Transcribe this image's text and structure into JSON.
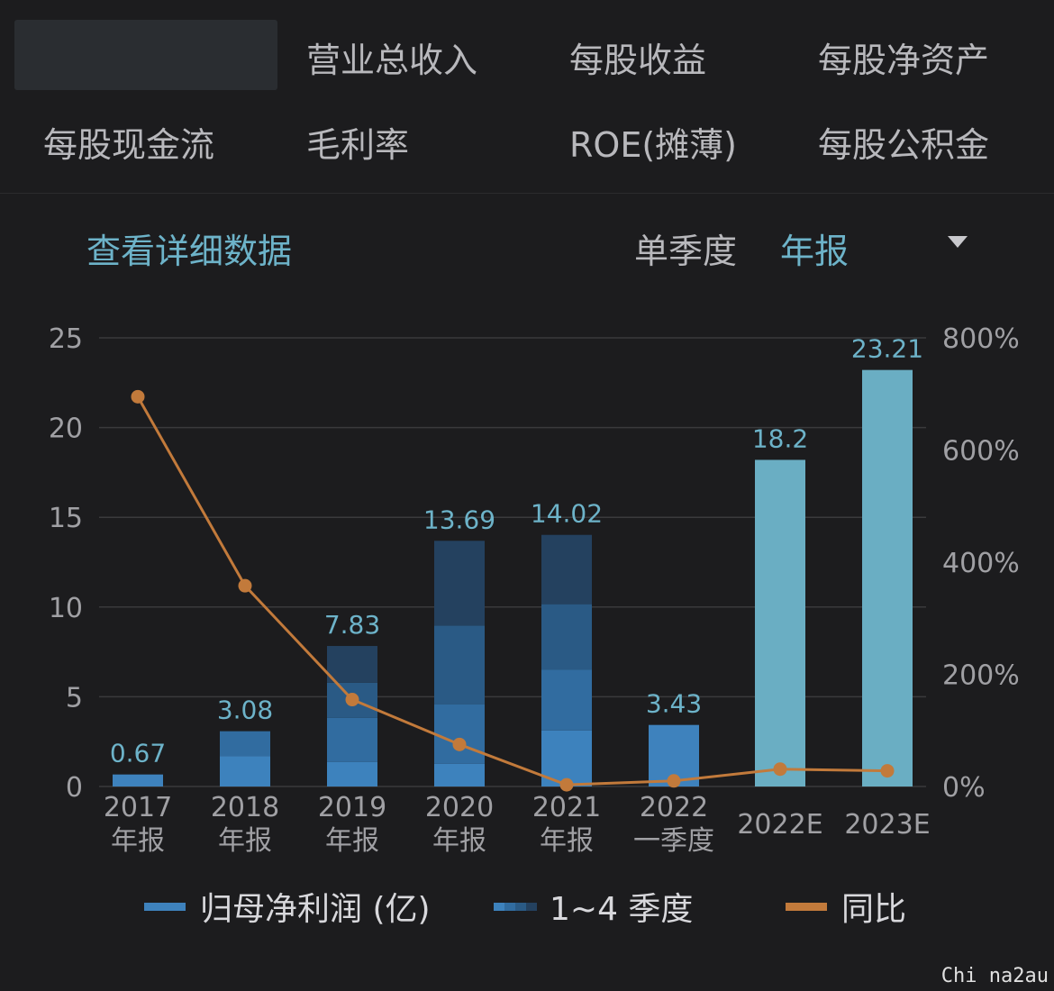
{
  "tabs": {
    "row1": [
      "营业总收入",
      "每股收益",
      "每股净资产"
    ],
    "row2": [
      "每股现金流",
      "毛利率",
      "ROE(摊薄)",
      "每股公积金"
    ]
  },
  "toolbar": {
    "detail_link": "查看详细数据",
    "period_label": "单季度",
    "period_value": "年报"
  },
  "legend": {
    "net_profit": "归母净利润 (亿)",
    "quarters": "1~4 季度",
    "yoy": "同比"
  },
  "watermark": "Chi na2au",
  "colors": {
    "background": "#1c1c1e",
    "bar_base": "#3e82bd",
    "quarter_shades": [
      "#3d82bd",
      "#316ca0",
      "#2a5a85",
      "#24415f"
    ],
    "estimate": "#6aaec3",
    "yoy_line": "#c27a3b",
    "label": "#6db3c9",
    "axis_text": "#a0a0a4",
    "grid": "#3a3a3c"
  },
  "chart_data": {
    "type": "bar",
    "categories": [
      [
        "2017",
        "年报"
      ],
      [
        "2018",
        "年报"
      ],
      [
        "2019",
        "年报"
      ],
      [
        "2020",
        "年报"
      ],
      [
        "2021",
        "年报"
      ],
      [
        "2022",
        "一季度"
      ],
      [
        "2022E"
      ],
      [
        "2023E"
      ]
    ],
    "values": [
      0.67,
      3.08,
      7.83,
      13.69,
      14.02,
      3.43,
      18.2,
      23.21
    ],
    "value_labels": [
      "0.67",
      "3.08",
      "7.83",
      "13.69",
      "14.02",
      "3.43",
      "18.2",
      "23.21"
    ],
    "quarter_breakdown": [
      [
        0.67
      ],
      [
        1.7,
        1.38
      ],
      [
        1.37,
        2.46,
        1.95,
        2.05
      ],
      [
        1.27,
        3.3,
        4.4,
        4.72
      ],
      [
        3.12,
        3.4,
        3.64,
        3.86
      ],
      [
        3.43
      ],
      null,
      null
    ],
    "estimate": [
      false,
      false,
      false,
      false,
      false,
      false,
      true,
      true
    ],
    "yoy_percent": [
      695,
      358,
      155,
      75,
      3,
      10,
      31,
      28
    ],
    "ylim": [
      0,
      25
    ],
    "yticks": [
      0,
      5,
      10,
      15,
      20,
      25
    ],
    "y2lim": [
      0,
      800
    ],
    "y2ticks": [
      "0%",
      "200%",
      "400%",
      "600%",
      "800%"
    ],
    "grid": true
  }
}
